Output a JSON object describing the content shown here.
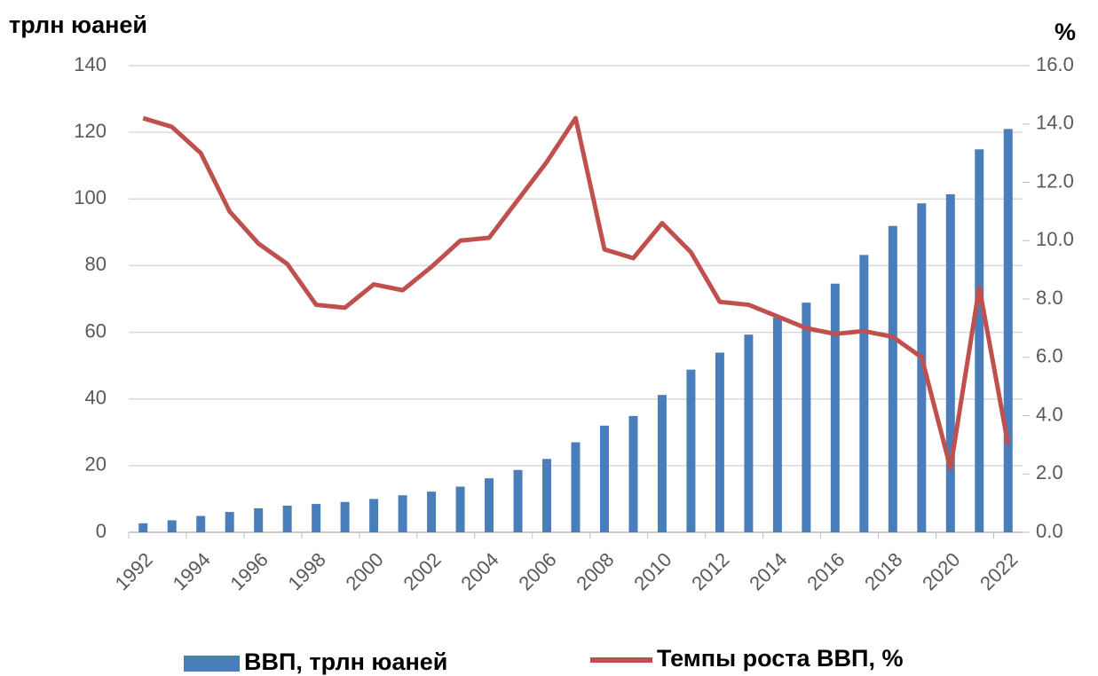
{
  "chart_data": {
    "type": "bar",
    "y_label": "трлн юаней",
    "y2_label": "%",
    "categories": [
      "1992",
      null,
      "1994",
      null,
      "1996",
      null,
      "1998",
      null,
      "2000",
      null,
      "2002",
      null,
      "2004",
      null,
      "2006",
      null,
      "2008",
      null,
      "2010",
      null,
      "2012",
      null,
      "2014",
      null,
      "2016",
      null,
      "2018",
      null,
      "2020",
      null,
      "2022"
    ],
    "series": [
      {
        "name": "ВВП, трлн юаней",
        "type": "bar",
        "color": "#4a7ebb",
        "values": [
          2.7,
          3.6,
          4.9,
          6.1,
          7.2,
          8.0,
          8.5,
          9.1,
          10.0,
          11.1,
          12.2,
          13.7,
          16.2,
          18.7,
          22.0,
          27.0,
          32.0,
          34.9,
          41.2,
          48.8,
          53.9,
          59.3,
          64.4,
          68.9,
          74.6,
          83.2,
          91.9,
          98.7,
          101.4,
          114.9,
          121.0
        ]
      },
      {
        "name": "Темпы роста ВВП, %",
        "type": "line",
        "axis": "y2",
        "color": "#c0504d",
        "values": [
          14.2,
          13.9,
          13.0,
          11.0,
          9.9,
          9.2,
          7.8,
          7.7,
          8.5,
          8.3,
          9.1,
          10.0,
          10.1,
          11.4,
          12.7,
          14.2,
          9.7,
          9.4,
          10.6,
          9.6,
          7.9,
          7.8,
          7.4,
          7.0,
          6.8,
          6.9,
          6.7,
          6.0,
          2.2,
          8.4,
          3.0
        ]
      }
    ],
    "ylim": [
      0,
      140
    ],
    "yticks": [
      0,
      20,
      40,
      60,
      80,
      100,
      120,
      140
    ],
    "y2lim": [
      0,
      16
    ],
    "y2ticks": [
      {
        "value": 0,
        "label": "0.0"
      },
      {
        "value": 2,
        "label": "2.0"
      },
      {
        "value": 4,
        "label": "4.0"
      },
      {
        "value": 6,
        "label": "6.0"
      },
      {
        "value": 8,
        "label": "8.0"
      },
      {
        "value": 10,
        "label": "10.0"
      },
      {
        "value": 12,
        "label": "12.0"
      },
      {
        "value": 14,
        "label": "14.0"
      },
      {
        "value": 16,
        "label": "16.0"
      }
    ],
    "grid": true,
    "legend": "bottom"
  }
}
